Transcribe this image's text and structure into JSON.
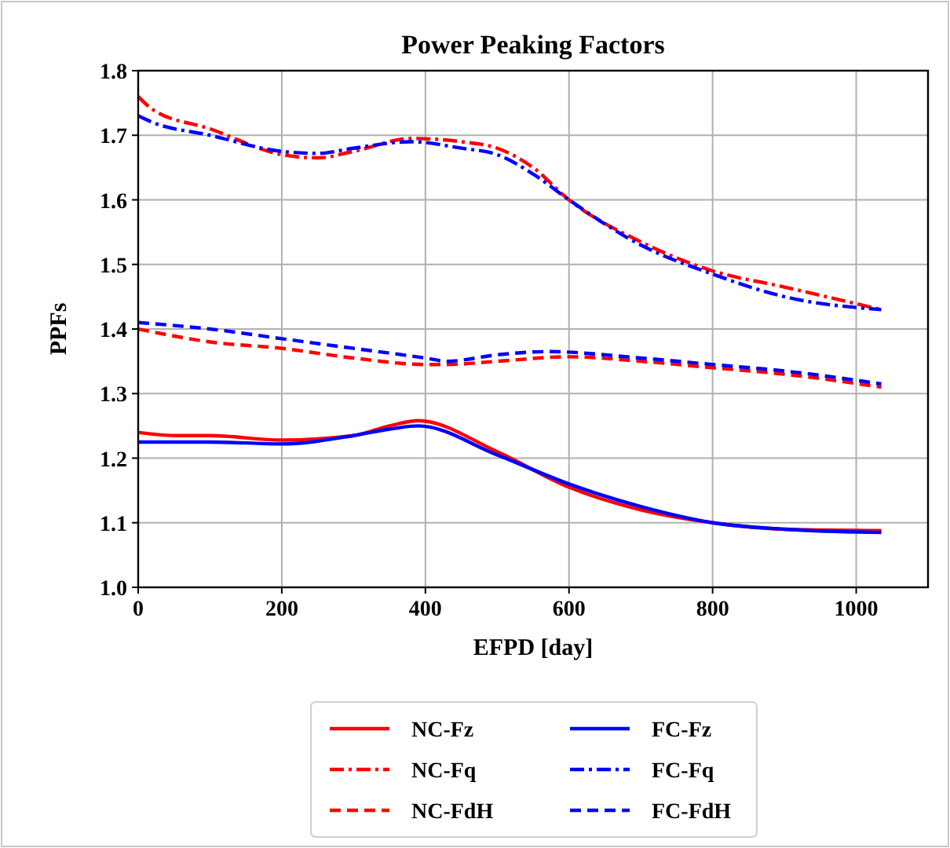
{
  "chart_data": {
    "type": "line",
    "title": "Power Peaking Factors",
    "xlabel": "EFPD [day]",
    "ylabel": "PPFs",
    "xlim": [
      0,
      1100
    ],
    "xticks": [
      0,
      200,
      400,
      600,
      800,
      1000
    ],
    "ylim": [
      1.0,
      1.8
    ],
    "yticks": [
      {
        "value": 1,
        "label": "1.0"
      },
      1.1,
      1.2,
      1.3,
      1.4,
      1.5,
      1.6,
      1.7,
      1.8
    ],
    "grid": true,
    "legend": "bottom",
    "series": [
      {
        "name": "NC-Fz",
        "color": "#ff0000",
        "line_style": "solid",
        "x": [
          0,
          50,
          100,
          200,
          300,
          350,
          390,
          500,
          600,
          700,
          800,
          900,
          1035
        ],
        "values": [
          1.24,
          1.235,
          1.235,
          1.228,
          1.235,
          1.25,
          1.258,
          1.21,
          1.155,
          1.12,
          1.1,
          1.09,
          1.088
        ]
      },
      {
        "name": "NC-Fq",
        "color": "#ff0000",
        "line_style": "dashdot",
        "x": [
          0,
          20,
          100,
          200,
          250,
          300,
          380,
          450,
          500,
          550,
          600,
          700,
          800,
          900,
          1035
        ],
        "values": [
          1.76,
          1.74,
          1.71,
          1.67,
          1.665,
          1.675,
          1.695,
          1.69,
          1.68,
          1.65,
          1.6,
          1.535,
          1.49,
          1.465,
          1.43
        ]
      },
      {
        "name": "NC-FdH",
        "color": "#ff0000",
        "line_style": "dashed",
        "x": [
          0,
          100,
          200,
          300,
          400,
          430,
          500,
          600,
          700,
          800,
          900,
          1035
        ],
        "values": [
          1.4,
          1.38,
          1.37,
          1.355,
          1.345,
          1.345,
          1.35,
          1.357,
          1.35,
          1.34,
          1.33,
          1.31
        ]
      },
      {
        "name": "FC-Fz",
        "color": "#0000ff",
        "line_style": "solid",
        "x": [
          0,
          50,
          100,
          200,
          300,
          350,
          390,
          500,
          600,
          700,
          800,
          900,
          1035
        ],
        "values": [
          1.225,
          1.225,
          1.225,
          1.222,
          1.235,
          1.245,
          1.25,
          1.205,
          1.16,
          1.125,
          1.1,
          1.09,
          1.085
        ]
      },
      {
        "name": "FC-Fq",
        "color": "#0000ff",
        "line_style": "dashdot",
        "x": [
          0,
          20,
          100,
          200,
          250,
          300,
          380,
          450,
          500,
          550,
          600,
          700,
          800,
          900,
          1035
        ],
        "values": [
          1.73,
          1.72,
          1.7,
          1.675,
          1.672,
          1.68,
          1.69,
          1.68,
          1.67,
          1.64,
          1.6,
          1.53,
          1.485,
          1.45,
          1.43
        ]
      },
      {
        "name": "FC-FdH",
        "color": "#0000ff",
        "line_style": "dashed",
        "x": [
          0,
          100,
          200,
          300,
          400,
          430,
          500,
          570,
          700,
          800,
          900,
          1035
        ],
        "values": [
          1.41,
          1.4,
          1.385,
          1.37,
          1.355,
          1.35,
          1.36,
          1.365,
          1.355,
          1.345,
          1.335,
          1.315
        ]
      }
    ]
  }
}
